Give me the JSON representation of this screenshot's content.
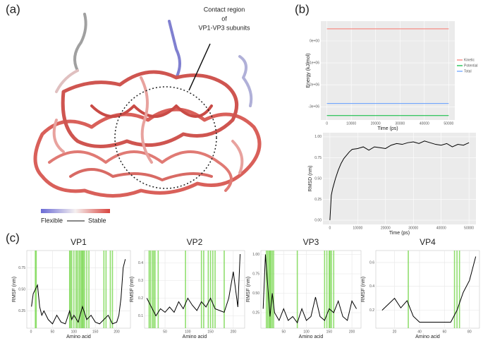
{
  "panel_labels": [
    "(a)",
    "(b)",
    "(c)"
  ],
  "structure": {
    "annotation": [
      "Contact region",
      "of",
      "VP1-VP3 subunits"
    ],
    "scale_low": "Flexible",
    "scale_high": "Stable"
  },
  "chart_data": [
    {
      "type": "line",
      "ylabel": "Energy (kJ/mol)",
      "xlabel": "Time (ps)",
      "background": "#ebebeb",
      "x": [
        0,
        50000
      ],
      "xlim": [
        -2500,
        52500
      ],
      "ylim": [
        -3600000,
        900000
      ],
      "xticks": [
        0,
        10000,
        20000,
        30000,
        40000,
        50000
      ],
      "yticks": [
        {
          "value": 0,
          "label": "0e+00"
        },
        {
          "value": -1000000,
          "label": "-1e+06"
        },
        {
          "value": -2000000,
          "label": "-2e+06"
        },
        {
          "value": -3000000,
          "label": "-3e+06"
        }
      ],
      "grid": true,
      "legend": "right",
      "series": [
        {
          "name": "Kinetic",
          "color": "#f8766d",
          "values": [
            550000,
            550000
          ]
        },
        {
          "name": "Potential",
          "color": "#00ba38",
          "values": [
            -3400000,
            -3400000
          ]
        },
        {
          "name": "Total",
          "color": "#619cff",
          "values": [
            -2850000,
            -2850000
          ]
        }
      ]
    },
    {
      "type": "line",
      "ylabel": "RMSD (nm)",
      "xlabel": "Time (ps)",
      "background": "#ebebeb",
      "x": [
        0,
        500,
        1000,
        2000,
        3000,
        4000,
        5000,
        6000,
        7000,
        8000,
        10000,
        12000,
        14000,
        16000,
        18000,
        20000,
        22000,
        24000,
        26000,
        28000,
        30000,
        32000,
        34000,
        36000,
        38000,
        40000,
        42000,
        44000,
        46000,
        48000,
        50000
      ],
      "xlim": [
        -2500,
        52500
      ],
      "ylim": [
        -0.05,
        1.05
      ],
      "xticks": [
        0,
        10000,
        20000,
        30000,
        40000,
        50000
      ],
      "yticks": [
        {
          "value": 0,
          "label": "0.00"
        },
        0.25,
        {
          "value": 0.5,
          "label": "0.50"
        },
        0.75,
        {
          "value": 1,
          "label": "1.00"
        }
      ],
      "grid": true,
      "series": [
        {
          "color": "#000000",
          "values": [
            0,
            0.3,
            0.38,
            0.5,
            0.6,
            0.68,
            0.74,
            0.78,
            0.82,
            0.85,
            0.86,
            0.88,
            0.84,
            0.88,
            0.87,
            0.86,
            0.9,
            0.92,
            0.91,
            0.93,
            0.94,
            0.92,
            0.95,
            0.93,
            0.91,
            0.9,
            0.92,
            0.88,
            0.91,
            0.9,
            0.93
          ]
        }
      ]
    },
    {
      "type": "line",
      "title": "VP1",
      "ylabel": "RMSF (nm)",
      "xlabel": "Amino acid",
      "background": "#ffffff",
      "x": [
        1,
        5,
        10,
        15,
        20,
        25,
        30,
        40,
        50,
        60,
        70,
        80,
        90,
        95,
        100,
        110,
        120,
        130,
        140,
        150,
        160,
        170,
        180,
        190,
        200,
        205,
        210,
        215,
        220
      ],
      "xlim": [
        -10,
        232
      ],
      "ylim": [
        0.05,
        0.95
      ],
      "xticks": [
        0,
        50,
        100,
        150,
        200
      ],
      "yticks": [
        0.25,
        {
          "value": 0.5,
          "label": "0.50"
        },
        0.75
      ],
      "grid": true,
      "highlights": [
        10,
        12,
        90,
        92,
        95,
        100,
        105,
        108,
        112,
        115,
        118,
        120,
        122,
        125,
        130,
        135,
        170,
        175,
        185,
        190
      ],
      "highlight_color": "#7ed957",
      "series": [
        {
          "color": "#000000",
          "values": [
            0.3,
            0.45,
            0.5,
            0.55,
            0.3,
            0.2,
            0.25,
            0.15,
            0.1,
            0.2,
            0.12,
            0.1,
            0.25,
            0.15,
            0.2,
            0.12,
            0.3,
            0.15,
            0.2,
            0.12,
            0.1,
            0.15,
            0.2,
            0.1,
            0.12,
            0.2,
            0.4,
            0.75,
            0.85
          ]
        }
      ]
    },
    {
      "type": "line",
      "title": "VP2",
      "ylabel": "RMSF (nm)",
      "xlabel": "Amino acid",
      "background": "#ffffff",
      "x": [
        10,
        20,
        30,
        40,
        50,
        60,
        70,
        80,
        90,
        100,
        110,
        120,
        130,
        140,
        150,
        160,
        170,
        180,
        190,
        200,
        210,
        215
      ],
      "xlim": [
        5,
        225
      ],
      "ylim": [
        0.03,
        0.47
      ],
      "xticks": [
        50,
        100,
        150,
        200
      ],
      "yticks": [
        0.1,
        0.2,
        0.3,
        0.4
      ],
      "grid": true,
      "highlights": [
        15,
        18,
        22,
        25,
        28,
        35,
        95,
        130,
        135,
        145,
        150,
        155,
        160,
        180
      ],
      "highlight_color": "#7ed957",
      "series": [
        {
          "color": "#000000",
          "values": [
            0.2,
            0.15,
            0.1,
            0.14,
            0.12,
            0.15,
            0.12,
            0.18,
            0.14,
            0.2,
            0.16,
            0.13,
            0.18,
            0.15,
            0.2,
            0.14,
            0.13,
            0.12,
            0.2,
            0.35,
            0.15,
            0.45
          ]
        }
      ]
    },
    {
      "type": "line",
      "title": "VP3",
      "ylabel": "RMSF (nm)",
      "xlabel": "Amino acid",
      "background": "#ffffff",
      "x": [
        5,
        10,
        15,
        20,
        25,
        30,
        40,
        50,
        60,
        70,
        80,
        90,
        100,
        110,
        120,
        130,
        140,
        150,
        160,
        170,
        180,
        190,
        200,
        210
      ],
      "xlim": [
        0,
        220
      ],
      "ylim": [
        0.05,
        1.05
      ],
      "xticks": [
        50,
        100,
        150,
        200
      ],
      "yticks": [
        0.25,
        {
          "value": 0.5,
          "label": "0.50"
        },
        0.75,
        {
          "value": 1,
          "label": "1.00"
        }
      ],
      "grid": true,
      "highlights": [
        12,
        15,
        18,
        20,
        22,
        25,
        28,
        80,
        140,
        145,
        150,
        152,
        155,
        160
      ],
      "highlight_color": "#7ed957",
      "series": [
        {
          "color": "#000000",
          "values": [
            0.3,
            1.0,
            0.6,
            0.2,
            0.5,
            0.25,
            0.15,
            0.3,
            0.15,
            0.2,
            0.12,
            0.3,
            0.15,
            0.2,
            0.45,
            0.2,
            0.15,
            0.3,
            0.25,
            0.4,
            0.2,
            0.15,
            0.4,
            0.3
          ]
        }
      ]
    },
    {
      "type": "line",
      "title": "VP4",
      "ylabel": "RMSF (nm)",
      "xlabel": "Amino acid",
      "background": "#ffffff",
      "x": [
        10,
        15,
        20,
        25,
        30,
        35,
        40,
        50,
        60,
        65,
        70,
        75,
        80,
        85
      ],
      "xlim": [
        5,
        88
      ],
      "ylim": [
        0.05,
        0.7
      ],
      "xticks": [
        20,
        40,
        60,
        80
      ],
      "yticks": [
        0.2,
        0.4,
        0.6
      ],
      "grid": true,
      "highlights": [
        31,
        68,
        70,
        72
      ],
      "highlight_color": "#7ed957",
      "series": [
        {
          "color": "#000000",
          "values": [
            0.2,
            0.25,
            0.3,
            0.22,
            0.28,
            0.15,
            0.1,
            0.1,
            0.1,
            0.1,
            0.2,
            0.35,
            0.45,
            0.65
          ]
        }
      ]
    }
  ]
}
